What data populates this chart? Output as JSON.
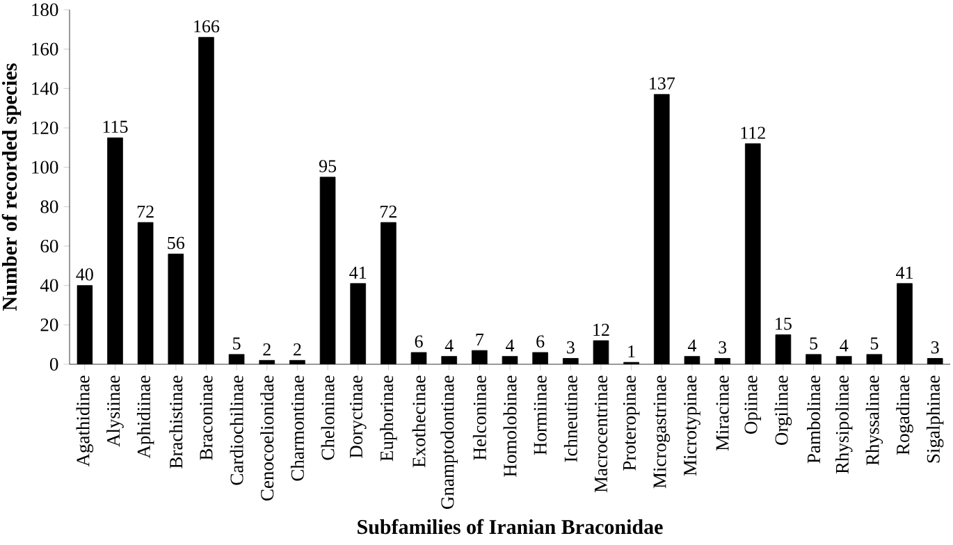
{
  "chart_data": {
    "type": "bar",
    "xlabel": "Subfamilies of Iranian Braconidae",
    "ylabel": "Number of recorded species",
    "categories": [
      "Agathidinae",
      "Alysiinae",
      "Aphidiinae",
      "Brachistinae",
      "Braconinae",
      "Cardiochilinae",
      "Cenocoelionidae",
      "Charmontinae",
      "Cheloninae",
      "Doryctinae",
      "Euphorinae",
      "Exothecinae",
      "Gnamptodontinae",
      "Helconinae",
      "Homolobinae",
      "Hormiinae",
      "Ichneutinae",
      "Macrocentrinae",
      "Proteropinae",
      "Microgastrinae",
      "Microtypinae",
      "Miracinae",
      "Opiinae",
      "Orgilinae",
      "Pambolinae",
      "Rhysipolinae",
      "Rhyssalinae",
      "Rogadinae",
      "Sigalphinae"
    ],
    "values": [
      40,
      115,
      72,
      56,
      166,
      5,
      2,
      2,
      95,
      41,
      72,
      6,
      4,
      7,
      4,
      6,
      3,
      12,
      1,
      137,
      4,
      3,
      112,
      15,
      5,
      4,
      5,
      41,
      3
    ],
    "color": "#000000",
    "ylim": [
      0,
      180
    ],
    "yticks": [
      0,
      20,
      40,
      60,
      80,
      100,
      120,
      140,
      160,
      180
    ],
    "data_labels": true,
    "grid": false
  }
}
